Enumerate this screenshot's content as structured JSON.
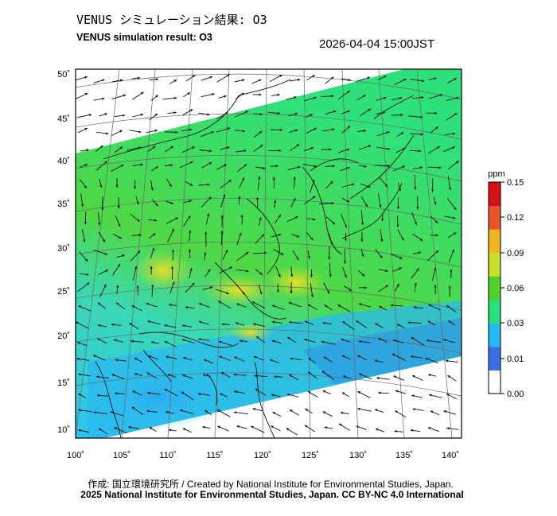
{
  "header": {
    "title_jp": "VENUS シミュレーション結果: O3",
    "title_en": "VENUS simulation result: O3",
    "timestamp": "2026-04-04 15:00JST"
  },
  "map": {
    "lon_range": [
      100,
      140
    ],
    "lat_range": [
      10,
      50
    ],
    "lon_ticks": [
      "100˚",
      "105˚",
      "110˚",
      "115˚",
      "120˚",
      "125˚",
      "130˚",
      "135˚",
      "140˚"
    ],
    "lat_ticks": [
      "10˚",
      "15˚",
      "20˚",
      "25˚",
      "30˚",
      "35˚",
      "40˚",
      "45˚",
      "50˚"
    ],
    "field": "O3 concentration with wind vectors"
  },
  "colorbar": {
    "unit": "ppm",
    "tick_labels": [
      "0.15",
      "0.12",
      "0.09",
      "0.06",
      "0.03",
      "0.01",
      "0.00"
    ],
    "colors": [
      "#ffffff",
      "#3d6fe0",
      "#26b8f2",
      "#27e07a",
      "#4fd12b",
      "#c9e02a",
      "#f0b421",
      "#e8552a",
      "#d8101a"
    ]
  },
  "footer": {
    "credit_line": "作成: 国立環境研究所 / Created by National Institute for Environmental Studies, Japan.",
    "copyright_line": "2025 National Institute for Environmental Studies, Japan. CC BY-NC 4.0 International"
  }
}
